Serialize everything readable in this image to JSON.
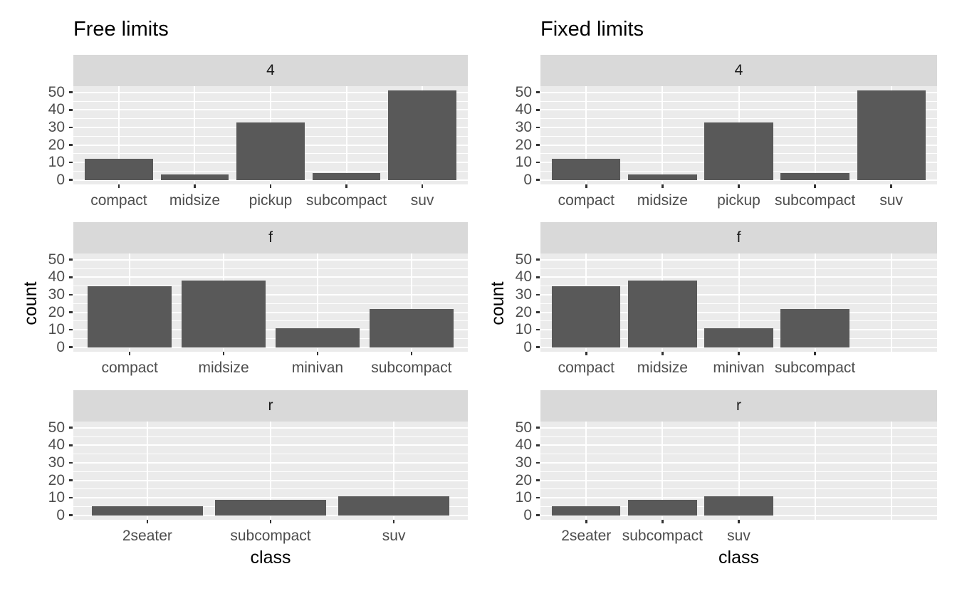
{
  "style": {
    "background": "#FFFFFF",
    "panel_bg": "#EBEBEB",
    "strip_bg": "#D9D9D9",
    "strip_text": "#1A1A1A",
    "bar_fill": "#595959",
    "grid_major": "#FFFFFF",
    "grid_minor": "#FFFFFF",
    "axis_text": "#4D4D4D",
    "title_text": "#000000",
    "tick_mark": "#333333"
  },
  "figure": {
    "y_axis": {
      "label": "count",
      "ticks": [
        "0",
        "10",
        "20",
        "30",
        "40",
        "50"
      ],
      "tick_values": [
        0,
        10,
        20,
        30,
        40,
        50
      ]
    },
    "x_axis": {
      "label": "class"
    }
  },
  "chart_data": [
    {
      "type": "bar",
      "title": "Free limits",
      "x_scale": "free",
      "xlabel": "class",
      "ylabel": "count",
      "ylim": [
        0,
        51
      ],
      "grid": true,
      "facets": [
        {
          "label": "4",
          "n_slots": 5,
          "categories": [
            "compact",
            "midsize",
            "pickup",
            "subcompact",
            "suv"
          ],
          "values": [
            12,
            3,
            33,
            4,
            51
          ]
        },
        {
          "label": "f",
          "n_slots": 4,
          "categories": [
            "compact",
            "midsize",
            "minivan",
            "subcompact"
          ],
          "values": [
            35,
            38,
            11,
            22
          ]
        },
        {
          "label": "r",
          "n_slots": 3,
          "categories": [
            "2seater",
            "subcompact",
            "suv"
          ],
          "values": [
            5,
            9,
            11
          ]
        }
      ]
    },
    {
      "type": "bar",
      "title": "Fixed limits",
      "x_scale": "fixed",
      "xlabel": "class",
      "ylabel": "count",
      "ylim": [
        0,
        51
      ],
      "grid": true,
      "facets": [
        {
          "label": "4",
          "n_slots": 5,
          "categories": [
            "compact",
            "midsize",
            "pickup",
            "subcompact",
            "suv"
          ],
          "values": [
            12,
            3,
            33,
            4,
            51
          ]
        },
        {
          "label": "f",
          "n_slots": 5,
          "categories": [
            "compact",
            "midsize",
            "minivan",
            "subcompact"
          ],
          "values": [
            35,
            38,
            11,
            22
          ]
        },
        {
          "label": "r",
          "n_slots": 5,
          "categories": [
            "2seater",
            "subcompact",
            "suv"
          ],
          "values": [
            5,
            9,
            11
          ]
        }
      ]
    }
  ]
}
